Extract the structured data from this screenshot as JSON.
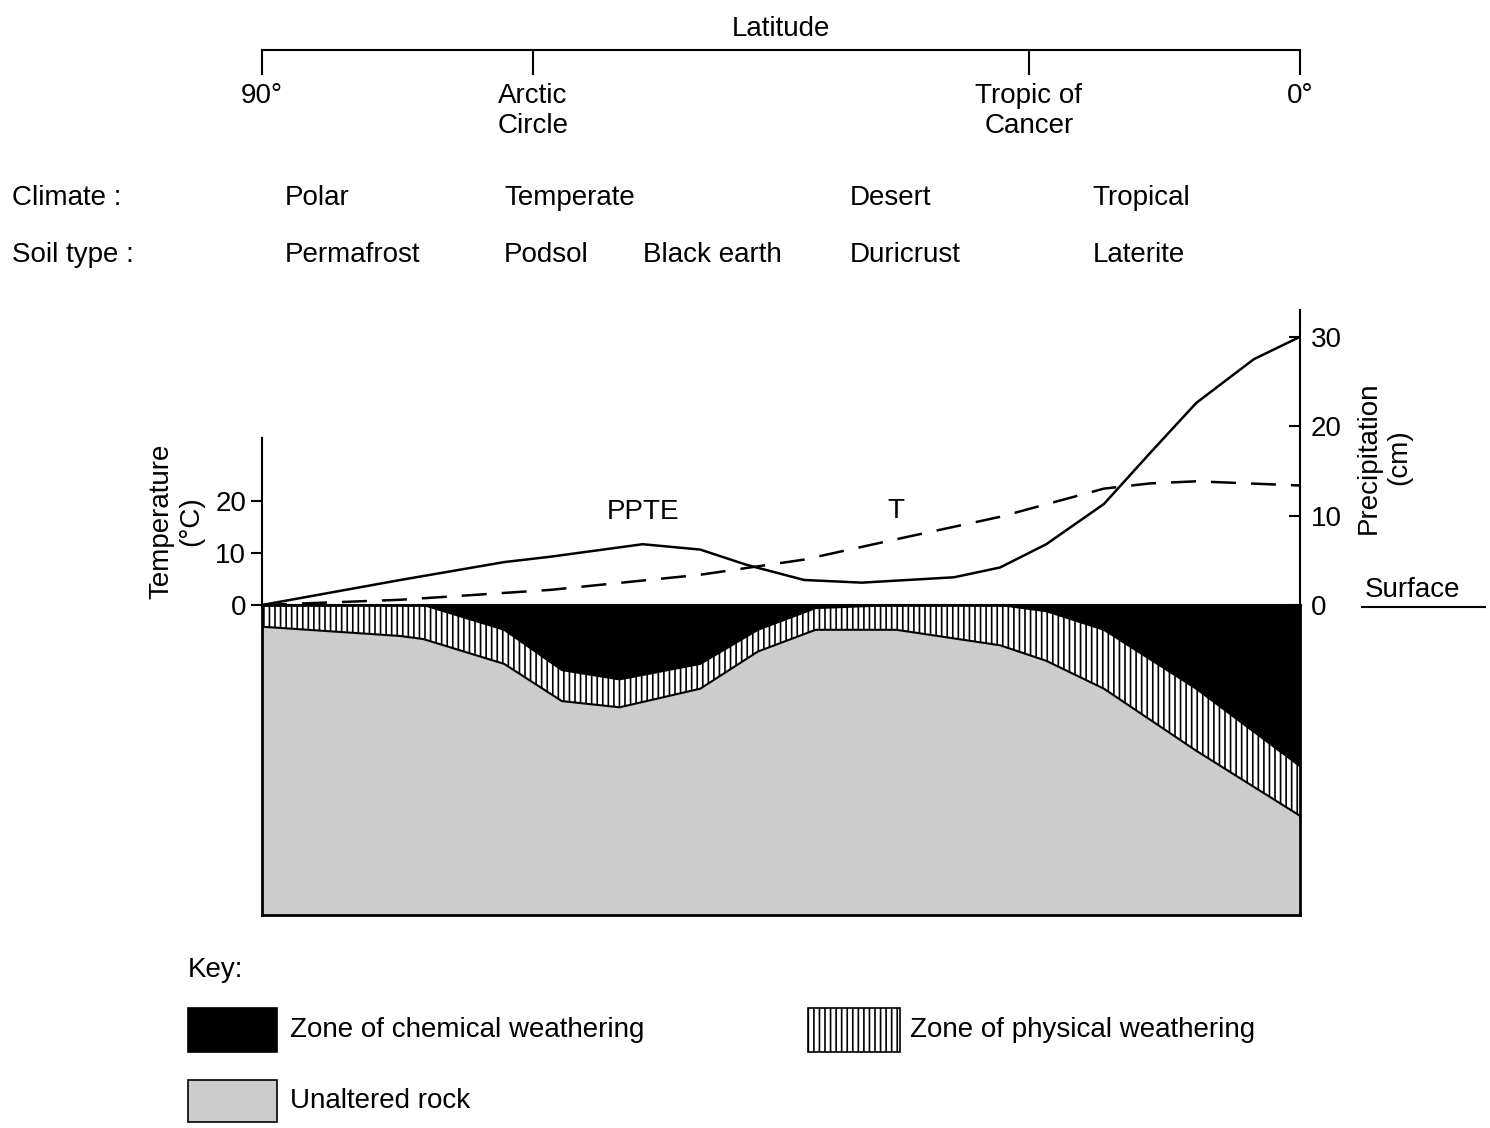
{
  "latitude_axis": {
    "title": "Latitude",
    "xlim": [
      90,
      0
    ],
    "xticks": [
      {
        "value": 90,
        "label": "90°"
      },
      {
        "value": 66.5,
        "label": "Arctic\nCircle"
      },
      {
        "value": 23.5,
        "label": "Tropic of\nCancer"
      },
      {
        "value": 0,
        "label": "0°"
      }
    ]
  },
  "rows": [
    {
      "label": "Climate :",
      "items": [
        {
          "x": 88,
          "text": "Polar"
        },
        {
          "x": 69,
          "text": "Temperate"
        },
        {
          "x": 39,
          "text": "Desert"
        },
        {
          "x": 18,
          "text": "Tropical"
        }
      ]
    },
    {
      "label": "Soil type :",
      "items": [
        {
          "x": 88,
          "text": "Permafrost"
        },
        {
          "x": 69,
          "text": "Podsol"
        },
        {
          "x": 57,
          "text": "Black earth"
        },
        {
          "x": 39,
          "text": "Duricrust"
        },
        {
          "x": 18,
          "text": "Laterite"
        }
      ]
    }
  ],
  "chart_data": [
    {
      "type": "line",
      "xlim": [
        90,
        0
      ],
      "ylim": [
        0,
        32
      ],
      "yticks": [
        0,
        10,
        20
      ],
      "ylabel": "Temperature\n(°C)",
      "y2lim": [
        0,
        33
      ],
      "y2ticks": [
        0,
        10,
        20,
        30
      ],
      "y2label": "Precipitation\n(cm)",
      "surface_label": "Surface",
      "series": [
        {
          "axis": "y2",
          "line_style": "solid",
          "color": "#000000",
          "x": [
            90,
            78,
            69,
            65,
            57,
            52,
            48,
            43,
            38,
            30,
            26,
            22,
            17,
            13,
            9,
            4,
            0
          ],
          "values": [
            0,
            2.8,
            4.8,
            5.4,
            6.8,
            6.2,
            4.5,
            2.8,
            2.5,
            3.1,
            4.2,
            6.8,
            11.3,
            17.0,
            22.6,
            27.5,
            30.0
          ]
        },
        {
          "axis": "y",
          "line_style": "dashed",
          "color": "#000000",
          "x": [
            90,
            78,
            65,
            52,
            43,
            35,
            26,
            17,
            13,
            9,
            0
          ],
          "values": [
            0,
            1.0,
            2.9,
            5.8,
            8.7,
            12.6,
            16.9,
            22.3,
            23.3,
            23.7,
            22.9
          ]
        }
      ],
      "annotations": [
        {
          "text": "PPTE",
          "x": 57,
          "y": 9,
          "axis": "y2"
        },
        {
          "text": "T",
          "x": 35,
          "y": 15.5,
          "axis": "y"
        }
      ]
    },
    {
      "type": "area",
      "stacked": true,
      "tick_labels": false,
      "xlim": [
        90,
        0
      ],
      "ylim": [
        100,
        0
      ],
      "x": [
        90,
        78,
        76,
        69,
        64,
        59,
        52,
        47,
        42,
        35,
        26,
        22,
        17,
        9,
        0
      ],
      "series": [
        {
          "name": "Zone of chemical weathering",
          "color": "#000000",
          "values": [
            0,
            0,
            0,
            8,
            21,
            24,
            19,
            8,
            1,
            0,
            0,
            2,
            8,
            27,
            52
          ]
        },
        {
          "name": "Zone of physical weathering",
          "color": "#ffffff",
          "values": [
            7,
            10,
            11,
            11,
            10,
            9,
            8,
            7,
            7,
            8,
            13,
            16,
            19,
            20,
            16
          ]
        },
        {
          "name": "Unaltered rock",
          "color": "#cccccc",
          "values": [
            93,
            90,
            89,
            81,
            69,
            67,
            73,
            85,
            92,
            92,
            87,
            82,
            73,
            53,
            32
          ]
        }
      ]
    }
  ],
  "key": {
    "title": "Key:"
  }
}
